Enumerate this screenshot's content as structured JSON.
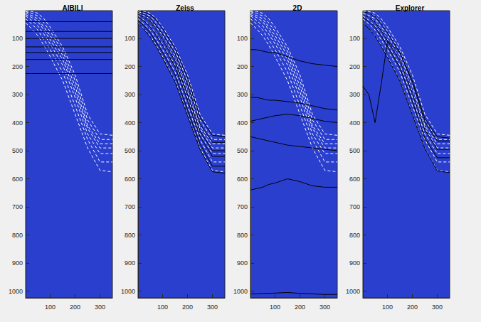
{
  "chart_data": [
    {
      "type": "line",
      "title": "AIBILI",
      "grid": false,
      "xlim": [
        1,
        350
      ],
      "ylim": [
        1,
        1024
      ],
      "xticks": [
        100,
        200,
        300
      ],
      "yticks": [
        100,
        200,
        300,
        400,
        500,
        600,
        700,
        800,
        900,
        1000
      ],
      "x": [
        1,
        25,
        50,
        75,
        100,
        150,
        200,
        250,
        300,
        350
      ],
      "series": [
        {
          "color": "#ffffff",
          "line_style": "dashed",
          "values": [
            2,
            4,
            10,
            30,
            60,
            130,
            230,
            370,
            440,
            445
          ]
        },
        {
          "color": "#ffffff",
          "line_style": "dashed",
          "values": [
            5,
            10,
            20,
            45,
            75,
            145,
            250,
            390,
            460,
            460
          ]
        },
        {
          "color": "#ffffff",
          "line_style": "dashed",
          "values": [
            10,
            18,
            30,
            60,
            90,
            160,
            270,
            410,
            475,
            475
          ]
        },
        {
          "color": "#ffffff",
          "line_style": "dashed",
          "values": [
            15,
            25,
            40,
            70,
            105,
            175,
            290,
            420,
            490,
            490
          ]
        },
        {
          "color": "#ffffff",
          "line_style": "dashed",
          "values": [
            20,
            35,
            55,
            85,
            120,
            195,
            310,
            440,
            510,
            510
          ]
        },
        {
          "color": "#ffffff",
          "line_style": "dashed",
          "values": [
            30,
            48,
            70,
            105,
            140,
            220,
            340,
            460,
            540,
            540
          ]
        },
        {
          "color": "#ffffff",
          "line_style": "dashed",
          "values": [
            45,
            65,
            90,
            125,
            165,
            250,
            370,
            490,
            570,
            575
          ]
        },
        {
          "color": "#000000",
          "line_style": "solid",
          "values": [
            40,
            40,
            40,
            40,
            40,
            40,
            40,
            40,
            40,
            40
          ]
        },
        {
          "color": "#000000",
          "line_style": "solid",
          "values": [
            75,
            75,
            75,
            75,
            75,
            75,
            75,
            75,
            75,
            75
          ]
        },
        {
          "color": "#000000",
          "line_style": "solid",
          "values": [
            100,
            100,
            100,
            100,
            100,
            100,
            100,
            100,
            100,
            100
          ]
        },
        {
          "color": "#000000",
          "line_style": "solid",
          "values": [
            130,
            130,
            130,
            130,
            130,
            130,
            130,
            130,
            130,
            130
          ]
        },
        {
          "color": "#000000",
          "line_style": "solid",
          "values": [
            150,
            150,
            150,
            150,
            150,
            150,
            150,
            150,
            150,
            150
          ]
        },
        {
          "color": "#000000",
          "line_style": "solid",
          "values": [
            175,
            175,
            175,
            175,
            175,
            175,
            175,
            175,
            175,
            175
          ]
        },
        {
          "color": "#000000",
          "line_style": "solid",
          "values": [
            225,
            225,
            225,
            225,
            225,
            225,
            225,
            225,
            225,
            225
          ]
        }
      ]
    },
    {
      "type": "line",
      "title": "Zeiss",
      "grid": false,
      "xlim": [
        1,
        350
      ],
      "ylim": [
        1,
        1024
      ],
      "xticks": [
        100,
        200,
        300
      ],
      "yticks": [
        100,
        200,
        300,
        400,
        500,
        600,
        700,
        800,
        900,
        1000
      ],
      "x": [
        1,
        25,
        50,
        75,
        100,
        150,
        200,
        250,
        300,
        350
      ],
      "series": [
        {
          "color": "#ffffff",
          "line_style": "dashed",
          "values": [
            2,
            4,
            10,
            30,
            60,
            130,
            230,
            370,
            440,
            445
          ]
        },
        {
          "color": "#ffffff",
          "line_style": "dashed",
          "values": [
            5,
            10,
            20,
            45,
            75,
            145,
            250,
            390,
            460,
            460
          ]
        },
        {
          "color": "#ffffff",
          "line_style": "dashed",
          "values": [
            10,
            18,
            30,
            60,
            90,
            160,
            270,
            410,
            475,
            475
          ]
        },
        {
          "color": "#ffffff",
          "line_style": "dashed",
          "values": [
            15,
            25,
            40,
            70,
            105,
            175,
            290,
            420,
            490,
            490
          ]
        },
        {
          "color": "#ffffff",
          "line_style": "dashed",
          "values": [
            20,
            35,
            55,
            85,
            120,
            195,
            310,
            440,
            510,
            510
          ]
        },
        {
          "color": "#ffffff",
          "line_style": "dashed",
          "values": [
            30,
            48,
            70,
            105,
            140,
            220,
            340,
            460,
            540,
            540
          ]
        },
        {
          "color": "#ffffff",
          "line_style": "dashed",
          "values": [
            45,
            65,
            90,
            125,
            165,
            250,
            370,
            490,
            570,
            575
          ]
        },
        {
          "color": "#000000",
          "line_style": "solid",
          "values": [
            3,
            6,
            15,
            35,
            65,
            135,
            240,
            380,
            445,
            450
          ]
        },
        {
          "color": "#000000",
          "line_style": "solid",
          "values": [
            8,
            15,
            28,
            55,
            85,
            155,
            265,
            405,
            470,
            470
          ]
        },
        {
          "color": "#000000",
          "line_style": "solid",
          "values": [
            14,
            25,
            40,
            70,
            105,
            180,
            300,
            430,
            500,
            500
          ]
        },
        {
          "color": "#000000",
          "line_style": "solid",
          "values": [
            22,
            38,
            58,
            90,
            125,
            200,
            320,
            450,
            520,
            520
          ]
        },
        {
          "color": "#000000",
          "line_style": "solid",
          "values": [
            35,
            55,
            80,
            115,
            150,
            230,
            355,
            475,
            555,
            555
          ]
        },
        {
          "color": "#000000",
          "line_style": "solid",
          "values": [
            45,
            68,
            95,
            130,
            170,
            255,
            375,
            495,
            575,
            580
          ]
        }
      ]
    },
    {
      "type": "line",
      "title": "2D",
      "grid": false,
      "xlim": [
        1,
        350
      ],
      "ylim": [
        1,
        1024
      ],
      "xticks": [
        100,
        200,
        300
      ],
      "yticks": [
        100,
        200,
        300,
        400,
        500,
        600,
        700,
        800,
        900,
        1000
      ],
      "x": [
        1,
        25,
        50,
        75,
        100,
        150,
        200,
        250,
        300,
        350
      ],
      "series": [
        {
          "color": "#ffffff",
          "line_style": "dashed",
          "values": [
            2,
            4,
            10,
            30,
            60,
            130,
            230,
            370,
            440,
            445
          ]
        },
        {
          "color": "#ffffff",
          "line_style": "dashed",
          "values": [
            5,
            10,
            20,
            45,
            75,
            145,
            250,
            390,
            460,
            460
          ]
        },
        {
          "color": "#ffffff",
          "line_style": "dashed",
          "values": [
            10,
            18,
            30,
            60,
            90,
            160,
            270,
            410,
            475,
            475
          ]
        },
        {
          "color": "#ffffff",
          "line_style": "dashed",
          "values": [
            15,
            25,
            40,
            70,
            105,
            175,
            290,
            420,
            490,
            490
          ]
        },
        {
          "color": "#ffffff",
          "line_style": "dashed",
          "values": [
            20,
            35,
            55,
            85,
            120,
            195,
            310,
            440,
            510,
            510
          ]
        },
        {
          "color": "#ffffff",
          "line_style": "dashed",
          "values": [
            30,
            48,
            70,
            105,
            140,
            220,
            340,
            460,
            540,
            540
          ]
        },
        {
          "color": "#ffffff",
          "line_style": "dashed",
          "values": [
            45,
            65,
            90,
            125,
            165,
            250,
            370,
            490,
            570,
            575
          ]
        },
        {
          "color": "#000000",
          "line_style": "solid",
          "values": [
            140,
            140,
            145,
            150,
            150,
            165,
            180,
            190,
            195,
            200
          ]
        },
        {
          "color": "#000000",
          "line_style": "solid",
          "values": [
            310,
            310,
            315,
            320,
            320,
            325,
            330,
            340,
            350,
            355
          ]
        },
        {
          "color": "#000000",
          "line_style": "solid",
          "values": [
            395,
            390,
            385,
            380,
            375,
            370,
            375,
            385,
            395,
            400
          ]
        },
        {
          "color": "#000000",
          "line_style": "solid",
          "values": [
            450,
            455,
            460,
            465,
            470,
            480,
            485,
            490,
            495,
            500
          ]
        },
        {
          "color": "#000000",
          "line_style": "solid",
          "values": [
            640,
            635,
            630,
            620,
            615,
            600,
            610,
            625,
            630,
            630
          ]
        },
        {
          "color": "#000000",
          "line_style": "solid",
          "values": [
            1010,
            1010,
            1008,
            1008,
            1007,
            1005,
            1008,
            1010,
            1012,
            1012
          ]
        }
      ]
    },
    {
      "type": "line",
      "title": "Explorer",
      "grid": false,
      "xlim": [
        1,
        350
      ],
      "ylim": [
        1,
        1024
      ],
      "xticks": [
        100,
        200,
        300
      ],
      "yticks": [
        100,
        200,
        300,
        400,
        500,
        600,
        700,
        800,
        900,
        1000
      ],
      "x": [
        1,
        25,
        50,
        75,
        100,
        150,
        200,
        250,
        300,
        350
      ],
      "series": [
        {
          "color": "#ffffff",
          "line_style": "dashed",
          "values": [
            2,
            4,
            10,
            30,
            60,
            130,
            230,
            370,
            440,
            445
          ]
        },
        {
          "color": "#ffffff",
          "line_style": "dashed",
          "values": [
            5,
            10,
            20,
            45,
            75,
            145,
            250,
            390,
            460,
            460
          ]
        },
        {
          "color": "#ffffff",
          "line_style": "dashed",
          "values": [
            10,
            18,
            30,
            60,
            90,
            160,
            270,
            410,
            475,
            475
          ]
        },
        {
          "color": "#ffffff",
          "line_style": "dashed",
          "values": [
            15,
            25,
            40,
            70,
            105,
            175,
            290,
            420,
            490,
            490
          ]
        },
        {
          "color": "#ffffff",
          "line_style": "dashed",
          "values": [
            20,
            35,
            55,
            85,
            120,
            195,
            310,
            440,
            510,
            510
          ]
        },
        {
          "color": "#ffffff",
          "line_style": "dashed",
          "values": [
            30,
            48,
            70,
            105,
            140,
            220,
            340,
            460,
            540,
            540
          ]
        },
        {
          "color": "#ffffff",
          "line_style": "dashed",
          "values": [
            45,
            65,
            90,
            125,
            165,
            250,
            370,
            490,
            570,
            575
          ]
        },
        {
          "color": "#000000",
          "line_style": "solid",
          "values": [
            270,
            300,
            400,
            260,
            110,
            150,
            250,
            385,
            450,
            455
          ]
        },
        {
          "color": "#000000",
          "line_style": "solid",
          "values": [
            5,
            10,
            22,
            48,
            80,
            150,
            255,
            395,
            465,
            465
          ]
        },
        {
          "color": "#000000",
          "line_style": "solid",
          "values": [
            15,
            25,
            42,
            72,
            108,
            178,
            295,
            425,
            495,
            495
          ]
        },
        {
          "color": "#000000",
          "line_style": "solid",
          "values": [
            25,
            40,
            60,
            92,
            128,
            205,
            325,
            455,
            525,
            525
          ]
        },
        {
          "color": "#000000",
          "line_style": "solid",
          "values": [
            45,
            65,
            92,
            128,
            168,
            252,
            372,
            492,
            572,
            578
          ]
        }
      ]
    }
  ]
}
